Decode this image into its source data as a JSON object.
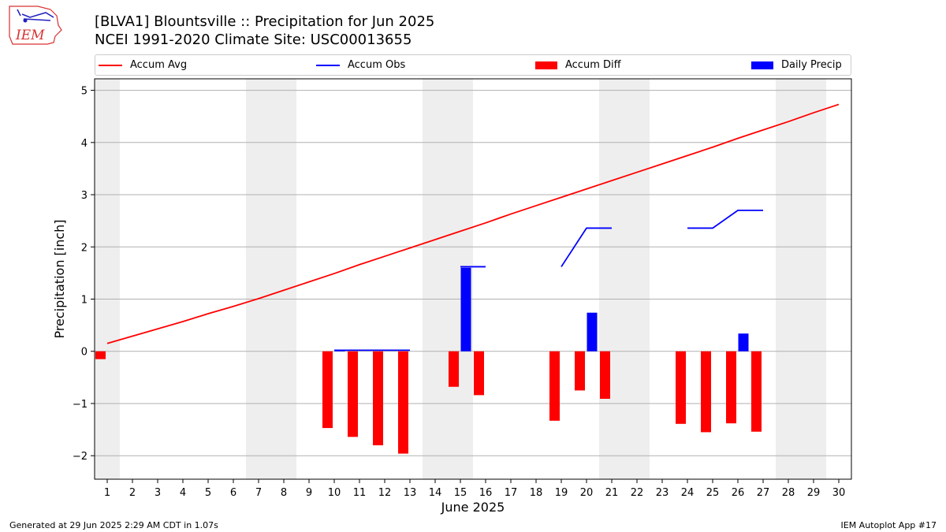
{
  "header": {
    "logo_text": "IEM",
    "title_line1": "[BLVA1] Blountsville :: Precipitation for Jun 2025",
    "title_line2": "NCEI 1991-2020 Climate Site: USC00013655"
  },
  "legend": {
    "placement": "top, spanning width",
    "items": [
      {
        "label": "Accum Avg",
        "type": "line",
        "color": "#ff0000"
      },
      {
        "label": "Accum Obs",
        "type": "line",
        "color": "#0000ff"
      },
      {
        "label": "Accum Diff",
        "type": "box",
        "color": "#ff0000"
      },
      {
        "label": "Daily Precip",
        "type": "box",
        "color": "#0000ff"
      }
    ]
  },
  "footer": {
    "generated": "Generated at 29 Jun 2025 2:29 AM CDT in 1.07s",
    "app": "IEM Autoplot App #17"
  },
  "chart_data": {
    "type": "bar",
    "xlabel": "June 2025",
    "ylabel": "Precipitation [inch]",
    "xlim": [
      0.5,
      30.5
    ],
    "ylim": [
      -2.45,
      5.22
    ],
    "grid": true,
    "x_ticks": [
      1,
      2,
      3,
      4,
      5,
      6,
      7,
      8,
      9,
      10,
      11,
      12,
      13,
      14,
      15,
      16,
      17,
      18,
      19,
      20,
      21,
      22,
      23,
      24,
      25,
      26,
      27,
      28,
      29,
      30
    ],
    "y_ticks": [
      -2,
      -1,
      0,
      1,
      2,
      3,
      4,
      5
    ],
    "y_tick_labels": [
      "−2",
      "−1",
      "0",
      "1",
      "2",
      "3",
      "4",
      "5"
    ],
    "weekend_shading": [
      [
        0.5,
        1.5
      ],
      [
        6.5,
        8.5
      ],
      [
        13.5,
        15.5
      ],
      [
        20.5,
        22.5
      ],
      [
        27.5,
        29.5
      ]
    ],
    "colors": {
      "avg": "#ff0000",
      "obs": "#0000ff",
      "diff": "#ff0000",
      "daily": "#0000ff",
      "shade": "#eeeeee",
      "grid": "#b0b0b0"
    },
    "accum_avg": {
      "name": "Accum Avg",
      "x": [
        1,
        2,
        3,
        4,
        5,
        6,
        7,
        8,
        9,
        10,
        11,
        12,
        13,
        14,
        15,
        16,
        17,
        18,
        19,
        20,
        21,
        22,
        23,
        24,
        25,
        26,
        27,
        28,
        29,
        30
      ],
      "values": [
        0.15,
        0.29,
        0.43,
        0.57,
        0.72,
        0.86,
        1.01,
        1.17,
        1.33,
        1.49,
        1.66,
        1.82,
        1.98,
        2.14,
        2.3,
        2.46,
        2.63,
        2.79,
        2.95,
        3.11,
        3.27,
        3.43,
        3.59,
        3.75,
        3.91,
        4.08,
        4.24,
        4.4,
        4.57,
        4.73
      ]
    },
    "accum_obs": {
      "name": "Accum Obs",
      "segments": [
        {
          "x": [
            10,
            11,
            12,
            13
          ],
          "values": [
            0.02,
            0.02,
            0.02,
            0.02
          ]
        },
        {
          "x": [
            15,
            16
          ],
          "values": [
            1.62,
            1.62
          ]
        },
        {
          "x": [
            19,
            20,
            21
          ],
          "values": [
            1.62,
            2.36,
            2.36
          ]
        },
        {
          "x": [
            24,
            25,
            26,
            27
          ],
          "values": [
            2.36,
            2.36,
            2.7,
            2.7
          ]
        }
      ]
    },
    "accum_diff": {
      "name": "Accum Diff",
      "x": [
        1,
        10,
        11,
        12,
        13,
        15,
        16,
        19,
        20,
        21,
        24,
        25,
        26,
        27
      ],
      "values": [
        -0.15,
        -1.47,
        -1.64,
        -1.8,
        -1.96,
        -0.68,
        -0.84,
        -1.33,
        -0.75,
        -0.91,
        -1.39,
        -1.55,
        -1.38,
        -1.54
      ]
    },
    "daily_precip": {
      "name": "Daily Precip",
      "x": [
        10,
        11,
        12,
        13,
        15,
        20,
        26
      ],
      "values": [
        0.02,
        0.0,
        0.0,
        0.0,
        1.6,
        0.74,
        0.34
      ]
    }
  }
}
